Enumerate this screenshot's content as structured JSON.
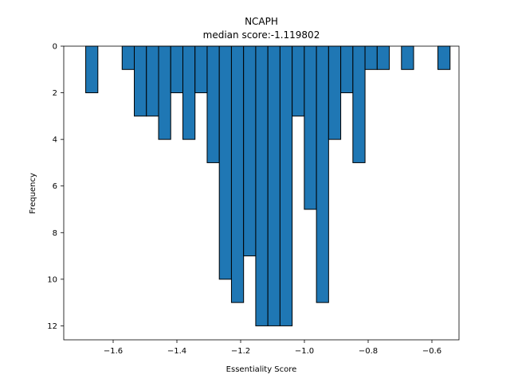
{
  "chart_data": {
    "type": "bar",
    "title": "NCAPH",
    "subtitle": "median score:-1.119802",
    "xlabel": "Essentiality Score",
    "ylabel": "Frequency",
    "xlim": [
      -1.755,
      -0.515
    ],
    "ylim": [
      0,
      12.6
    ],
    "y_inverted": true,
    "grid": false,
    "x_ticks": [
      -1.6,
      -1.4,
      -1.2,
      -1.0,
      -0.8,
      -0.6
    ],
    "x_tick_labels": [
      "−1.6",
      "−1.4",
      "−1.2",
      "−1.0",
      "−0.8",
      "−0.6"
    ],
    "y_ticks": [
      0,
      2,
      4,
      6,
      8,
      10,
      12
    ],
    "y_tick_labels": [
      "0",
      "2",
      "4",
      "6",
      "8",
      "10",
      "12"
    ],
    "bin_width": 0.0381,
    "bins": [
      {
        "x_start": -1.6861,
        "value": 2
      },
      {
        "x_start": -1.5718,
        "value": 1
      },
      {
        "x_start": -1.5337,
        "value": 3
      },
      {
        "x_start": -1.4956,
        "value": 3
      },
      {
        "x_start": -1.4575,
        "value": 4
      },
      {
        "x_start": -1.4194,
        "value": 2
      },
      {
        "x_start": -1.3813,
        "value": 4
      },
      {
        "x_start": -1.3432,
        "value": 2
      },
      {
        "x_start": -1.3051,
        "value": 5
      },
      {
        "x_start": -1.267,
        "value": 10
      },
      {
        "x_start": -1.2289,
        "value": 11
      },
      {
        "x_start": -1.1908,
        "value": 9
      },
      {
        "x_start": -1.1527,
        "value": 12
      },
      {
        "x_start": -1.1146,
        "value": 12
      },
      {
        "x_start": -1.0765,
        "value": 12
      },
      {
        "x_start": -1.0384,
        "value": 3
      },
      {
        "x_start": -1.0003,
        "value": 7
      },
      {
        "x_start": -0.9622,
        "value": 11
      },
      {
        "x_start": -0.9241,
        "value": 4
      },
      {
        "x_start": -0.886,
        "value": 2
      },
      {
        "x_start": -0.8479,
        "value": 5
      },
      {
        "x_start": -0.8098,
        "value": 1
      },
      {
        "x_start": -0.7717,
        "value": 1
      },
      {
        "x_start": -0.6955,
        "value": 1
      },
      {
        "x_start": -0.5812,
        "value": 1
      }
    ]
  },
  "colors": {
    "bar_fill": "#1f77b4",
    "bar_edge": "#000000"
  }
}
